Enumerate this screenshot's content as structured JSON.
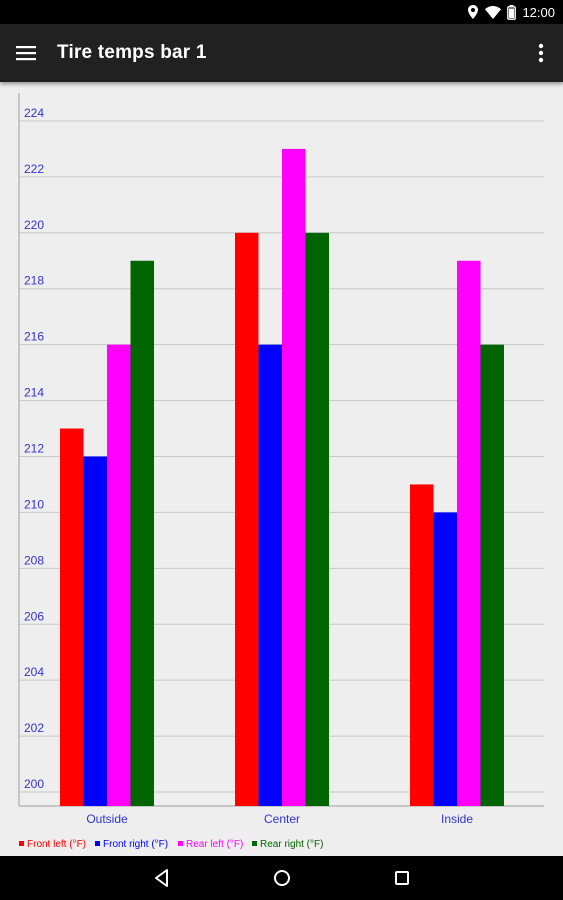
{
  "status_bar": {
    "time": "12:00"
  },
  "app_bar": {
    "title": "Tire temps bar 1"
  },
  "icons": {
    "menu": "menu-icon",
    "overflow": "more-vert-icon",
    "location": "location-icon",
    "wifi": "wifi-icon",
    "battery": "battery-icon",
    "back": "back-icon",
    "home": "home-icon",
    "recents": "recents-icon"
  },
  "chart_data": {
    "type": "bar",
    "categories": [
      "Outside",
      "Center",
      "Inside"
    ],
    "series": [
      {
        "name": "Front left (°F)",
        "color": "#ff0000",
        "values": [
          213,
          220,
          211
        ]
      },
      {
        "name": "Front right (°F)",
        "color": "#0000ff",
        "values": [
          212,
          216,
          210
        ]
      },
      {
        "name": "Rear left (°F)",
        "color": "#ff00ff",
        "values": [
          216,
          223,
          219
        ]
      },
      {
        "name": "Rear right (°F)",
        "color": "#006400",
        "values": [
          219,
          220,
          216
        ]
      }
    ],
    "yticks": [
      "200",
      "202",
      "204",
      "206",
      "208",
      "210",
      "212",
      "214",
      "216",
      "218",
      "220",
      "222",
      "224"
    ],
    "ylim": [
      199.5,
      225
    ],
    "grid": true,
    "legend_position": "bottom-left",
    "label_color": "#3333cc",
    "grid_color": "#c8c8c8"
  }
}
